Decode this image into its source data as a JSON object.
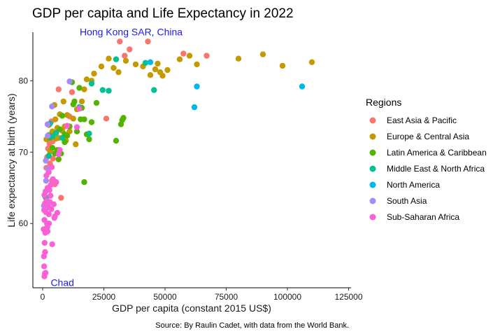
{
  "chart_data": {
    "type": "scatter",
    "title": "GDP per capita and Life Expectancy in 2022",
    "xlabel": "GDP per capita (constant 2015 US$)",
    "ylabel": "Life expectancy at birth (years)",
    "xlim": [
      -4000,
      126000
    ],
    "ylim": [
      51.0,
      86.8
    ],
    "x_ticks": [
      0,
      25000,
      50000,
      75000,
      100000,
      125000
    ],
    "x_tick_labels": [
      "0",
      "25000",
      "50000",
      "75000",
      "100000",
      "125000"
    ],
    "y_ticks": [
      60,
      70,
      80
    ],
    "y_tick_labels": [
      "60",
      "70",
      "80"
    ],
    "caption": "Source: By Raulin Cadet, with data from the World Bank.",
    "legend_title": "Regions",
    "annotations": [
      {
        "text": "Hong Kong SAR, China",
        "x": 43000,
        "y": 85.5
      },
      {
        "text": "Chad",
        "x": 700,
        "y": 52.4
      }
    ],
    "series": [
      {
        "name": "East Asia & Pacific",
        "color": "#F8766D",
        "points": [
          [
            31500,
            85.5
          ],
          [
            35500,
            84.4
          ],
          [
            43000,
            85.5
          ],
          [
            33500,
            83.5
          ],
          [
            57500,
            83.8
          ],
          [
            67000,
            83.5
          ],
          [
            26000,
            74.7
          ],
          [
            12000,
            78.4
          ],
          [
            6500,
            78.8
          ],
          [
            3600,
            74.3
          ],
          [
            4100,
            71.5
          ],
          [
            3000,
            68.4
          ],
          [
            2200,
            70.5
          ],
          [
            1500,
            67.8
          ],
          [
            2500,
            67.2
          ],
          [
            5000,
            65.5
          ],
          [
            9000,
            72.0
          ],
          [
            7500,
            63.6
          ],
          [
            4200,
            69.1
          ],
          [
            11000,
            75.0
          ],
          [
            1800,
            69.3
          ],
          [
            2800,
            71.2
          ],
          [
            3800,
            66.0
          ]
        ]
      },
      {
        "name": "Europe & Central Asia",
        "color": "#C49A00",
        "points": [
          [
            18000,
            80.2
          ],
          [
            21000,
            81.0
          ],
          [
            24000,
            82.0
          ],
          [
            27000,
            83.1
          ],
          [
            29000,
            81.8
          ],
          [
            31000,
            81.2
          ],
          [
            34000,
            82.8
          ],
          [
            38000,
            82.3
          ],
          [
            41000,
            82.0
          ],
          [
            44000,
            80.8
          ],
          [
            46000,
            81.6
          ],
          [
            47000,
            82.4
          ],
          [
            48000,
            81.2
          ],
          [
            49000,
            80.7
          ],
          [
            51000,
            81.5
          ],
          [
            56000,
            83.0
          ],
          [
            60000,
            83.5
          ],
          [
            63000,
            82.3
          ],
          [
            80000,
            83.1
          ],
          [
            90000,
            83.7
          ],
          [
            98000,
            82.1
          ],
          [
            110000,
            82.6
          ],
          [
            14000,
            76.0
          ],
          [
            16000,
            77.1
          ],
          [
            17000,
            78.8
          ],
          [
            20000,
            80.0
          ],
          [
            10000,
            75.2
          ],
          [
            9000,
            73.6
          ],
          [
            8000,
            73.0
          ],
          [
            12500,
            74.7
          ],
          [
            6500,
            72.0
          ],
          [
            7000,
            75.3
          ],
          [
            5500,
            71.9
          ],
          [
            4000,
            72.9
          ],
          [
            4800,
            76.6
          ],
          [
            3000,
            70.1
          ],
          [
            11000,
            72.9
          ],
          [
            13500,
            71.1
          ],
          [
            9500,
            71.6
          ],
          [
            5200,
            74.6
          ],
          [
            8500,
            77.1
          ],
          [
            1500,
            71.8
          ],
          [
            3500,
            72.1
          ],
          [
            2500,
            73.8
          ],
          [
            6000,
            73.4
          ]
        ]
      },
      {
        "name": "Latin America & Caribbean",
        "color": "#53B400",
        "points": [
          [
            15000,
            79.0
          ],
          [
            12000,
            79.8
          ],
          [
            13000,
            77.1
          ],
          [
            16000,
            76.2
          ],
          [
            17000,
            74.6
          ],
          [
            18000,
            72.5
          ],
          [
            19000,
            71.8
          ],
          [
            20000,
            74.2
          ],
          [
            22000,
            76.9
          ],
          [
            30000,
            71.6
          ],
          [
            32000,
            73.9
          ],
          [
            32500,
            74.5
          ],
          [
            33000,
            74.8
          ],
          [
            17000,
            65.8
          ],
          [
            2500,
            72.4
          ],
          [
            4000,
            70.6
          ],
          [
            6000,
            70.3
          ],
          [
            5000,
            69.8
          ],
          [
            9000,
            71.4
          ],
          [
            10000,
            72.3
          ],
          [
            8000,
            75.1
          ],
          [
            7000,
            73.2
          ],
          [
            11000,
            73.6
          ],
          [
            14000,
            72.9
          ],
          [
            3000,
            72.0
          ],
          [
            6500,
            69.0
          ],
          [
            7500,
            69.8
          ],
          [
            12500,
            76.7
          ],
          [
            1500,
            63.4
          ],
          [
            9000,
            72.5
          ],
          [
            15500,
            74.6
          ]
        ]
      },
      {
        "name": "Middle East & North Africa",
        "color": "#00C094",
        "points": [
          [
            24500,
            78.7
          ],
          [
            27000,
            78.6
          ],
          [
            30000,
            83.0
          ],
          [
            42000,
            82.5
          ],
          [
            45500,
            78.7
          ],
          [
            19000,
            72.6
          ],
          [
            15000,
            76.3
          ],
          [
            20000,
            79.6
          ],
          [
            8000,
            72.0
          ],
          [
            4000,
            72.2
          ],
          [
            3000,
            74.0
          ],
          [
            2500,
            69.5
          ],
          [
            1000,
            63.8
          ],
          [
            2000,
            62.3
          ],
          [
            5500,
            72.7
          ]
        ]
      },
      {
        "name": "North America",
        "color": "#00B6EB",
        "points": [
          [
            44000,
            82.6
          ],
          [
            62000,
            76.3
          ],
          [
            63000,
            79.2
          ],
          [
            106000,
            79.2
          ]
        ]
      },
      {
        "name": "South Asia",
        "color": "#A58AFF",
        "points": [
          [
            11000,
            79.9
          ],
          [
            3800,
            76.4
          ],
          [
            2000,
            73.9
          ],
          [
            2300,
            67.7
          ],
          [
            2100,
            72.3
          ],
          [
            1300,
            68.8
          ],
          [
            1400,
            66.0
          ],
          [
            500,
            62.5
          ]
        ]
      },
      {
        "name": "Sub-Saharan Africa",
        "color": "#FB61D7",
        "points": [
          [
            700,
            52.6
          ],
          [
            900,
            53.0
          ],
          [
            600,
            54.0
          ],
          [
            1200,
            53.1
          ],
          [
            500,
            55.4
          ],
          [
            1000,
            56.0
          ],
          [
            800,
            57.3
          ],
          [
            1100,
            58.7
          ],
          [
            400,
            59.2
          ],
          [
            1500,
            59.3
          ],
          [
            2000,
            58.9
          ],
          [
            700,
            60.5
          ],
          [
            1800,
            60.0
          ],
          [
            2500,
            61.3
          ],
          [
            1300,
            61.6
          ],
          [
            900,
            62.8
          ],
          [
            1600,
            63.2
          ],
          [
            2200,
            62.4
          ],
          [
            3000,
            63.0
          ],
          [
            3500,
            62.0
          ],
          [
            4500,
            62.7
          ],
          [
            5000,
            61.0
          ],
          [
            6000,
            61.5
          ],
          [
            700,
            64.0
          ],
          [
            1200,
            64.5
          ],
          [
            2000,
            65.0
          ],
          [
            2800,
            64.7
          ],
          [
            3300,
            65.4
          ],
          [
            4200,
            66.2
          ],
          [
            5500,
            65.8
          ],
          [
            1500,
            66.7
          ],
          [
            2400,
            67.2
          ],
          [
            3700,
            67.9
          ],
          [
            6500,
            69.7
          ],
          [
            7000,
            70.3
          ],
          [
            10000,
            73.7
          ],
          [
            14000,
            73.5
          ],
          [
            15000,
            76.1
          ],
          [
            3900,
            57.1
          ],
          [
            2600,
            60.0
          ],
          [
            1900,
            59.5
          ],
          [
            600,
            61.9
          ],
          [
            1000,
            59.0
          ],
          [
            4800,
            60.8
          ],
          [
            3200,
            63.9
          ]
        ]
      }
    ]
  }
}
